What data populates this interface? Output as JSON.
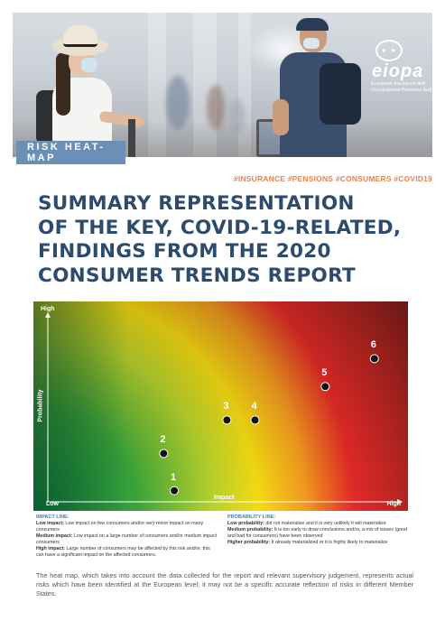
{
  "header": {
    "logo_mark": "★ ★",
    "logo_word": "eiopa",
    "logo_subtitle": "European Insurance and Occupational Pensions Authority",
    "section_band": "RISK HEAT-MAP"
  },
  "hashtags": "#INSURANCE #PENSIONS #CONSUMERS #COVID19",
  "title_lines": [
    "SUMMARY REPRESENTATION",
    "OF THE KEY, COVID-19-RELATED,",
    "FINDINGS FROM THE 2020",
    "CONSUMER TRENDS REPORT"
  ],
  "chart_data": {
    "type": "scatter",
    "xlabel": "Impact",
    "ylabel": "Probability",
    "x_range_labels": [
      "Low",
      "High"
    ],
    "y_range_labels": [
      "Low",
      "High"
    ],
    "xlim": [
      0,
      1
    ],
    "ylim": [
      0,
      1
    ],
    "grid": false,
    "background": "heat gradient from green (low impact, low probability) through yellow and red to dark red (high impact, high probability)",
    "points": [
      {
        "label": "1",
        "x": 0.36,
        "y": 0.06
      },
      {
        "label": "2",
        "x": 0.33,
        "y": 0.26
      },
      {
        "label": "3",
        "x": 0.51,
        "y": 0.44
      },
      {
        "label": "4",
        "x": 0.59,
        "y": 0.44
      },
      {
        "label": "5",
        "x": 0.79,
        "y": 0.62
      },
      {
        "label": "6",
        "x": 0.93,
        "y": 0.77
      }
    ]
  },
  "legend": {
    "impact": {
      "heading": "IMPACT LINE:",
      "items": [
        {
          "term": "Low impact:",
          "text": " Low impact on few consumers and/or very minor impact on many consumers"
        },
        {
          "term": "Medium impact:",
          "text": " Low impact on a large number of consumers and/or medium impact consumers"
        },
        {
          "term": "High impact:",
          "text": " Large number of consumers may be affected by this risk and/or, this can have a significant impact on the affected consumers."
        }
      ]
    },
    "probability": {
      "heading": "PROBABILITY LINE:",
      "items": [
        {
          "term": "Low probability:",
          "text": " did not materialize and it is very unlikely it will materialize"
        },
        {
          "term": "Medium probability:",
          "text": " It is too early to draw conclusions and/or, a mix of issues (good and bad for consumers) have been observed"
        },
        {
          "term": "Higher probability:",
          "text": " It already materialized or it is highly likely to materialize"
        }
      ]
    }
  },
  "footer_text": "The heat map, which takes into account the data collected for the report and relevant supervisory judgement, represents actual risks which have been identified at the European level; it may not be a specific accurate reflection of risks in different Member States.",
  "colors": {
    "title": "#2d4c6d",
    "hashtags": "#e8834c",
    "band": "#6c8fb5",
    "legend_heading": "#4b79a7"
  }
}
